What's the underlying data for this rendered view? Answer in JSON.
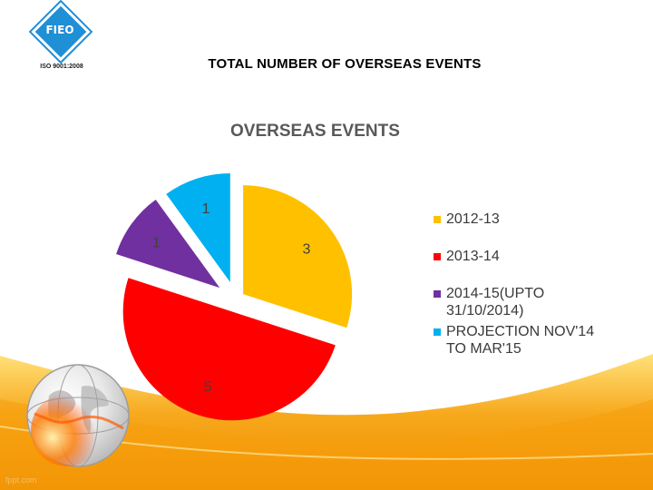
{
  "logo": {
    "text": "FIEO",
    "cert": "ISO 9001:2008"
  },
  "slide_title": "TOTAL NUMBER OF OVERSEAS EVENTS",
  "watermark": "fppt.com",
  "chart_data": {
    "type": "pie",
    "title": "OVERSEAS EVENTS",
    "exploded": true,
    "legend_position": "right",
    "slices": [
      {
        "label": "2012-13",
        "value": 3,
        "color": "#FFC000"
      },
      {
        "label": "2013-14",
        "value": 5,
        "color": "#FF0000"
      },
      {
        "label": "2014-15(UPTO 31/10/2014)",
        "value": 1,
        "color": "#7030A0"
      },
      {
        "label": "PROJECTION NOV'14 TO MAR'15",
        "value": 1,
        "color": "#00B0F0"
      }
    ]
  },
  "legend": [
    {
      "lines": [
        "2012-13"
      ],
      "color": "#FFC000"
    },
    {
      "lines": [
        "2013-14"
      ],
      "color": "#FF0000"
    },
    {
      "lines": [
        "2014-15(UPTO",
        "31/10/2014)"
      ],
      "color": "#7030A0"
    },
    {
      "lines": [
        "PROJECTION NOV'14",
        "TO MAR'15"
      ],
      "color": "#00B0F0"
    }
  ],
  "colors": {
    "band_orange": "#F39C12",
    "band_yellow": "#FFD54A"
  }
}
